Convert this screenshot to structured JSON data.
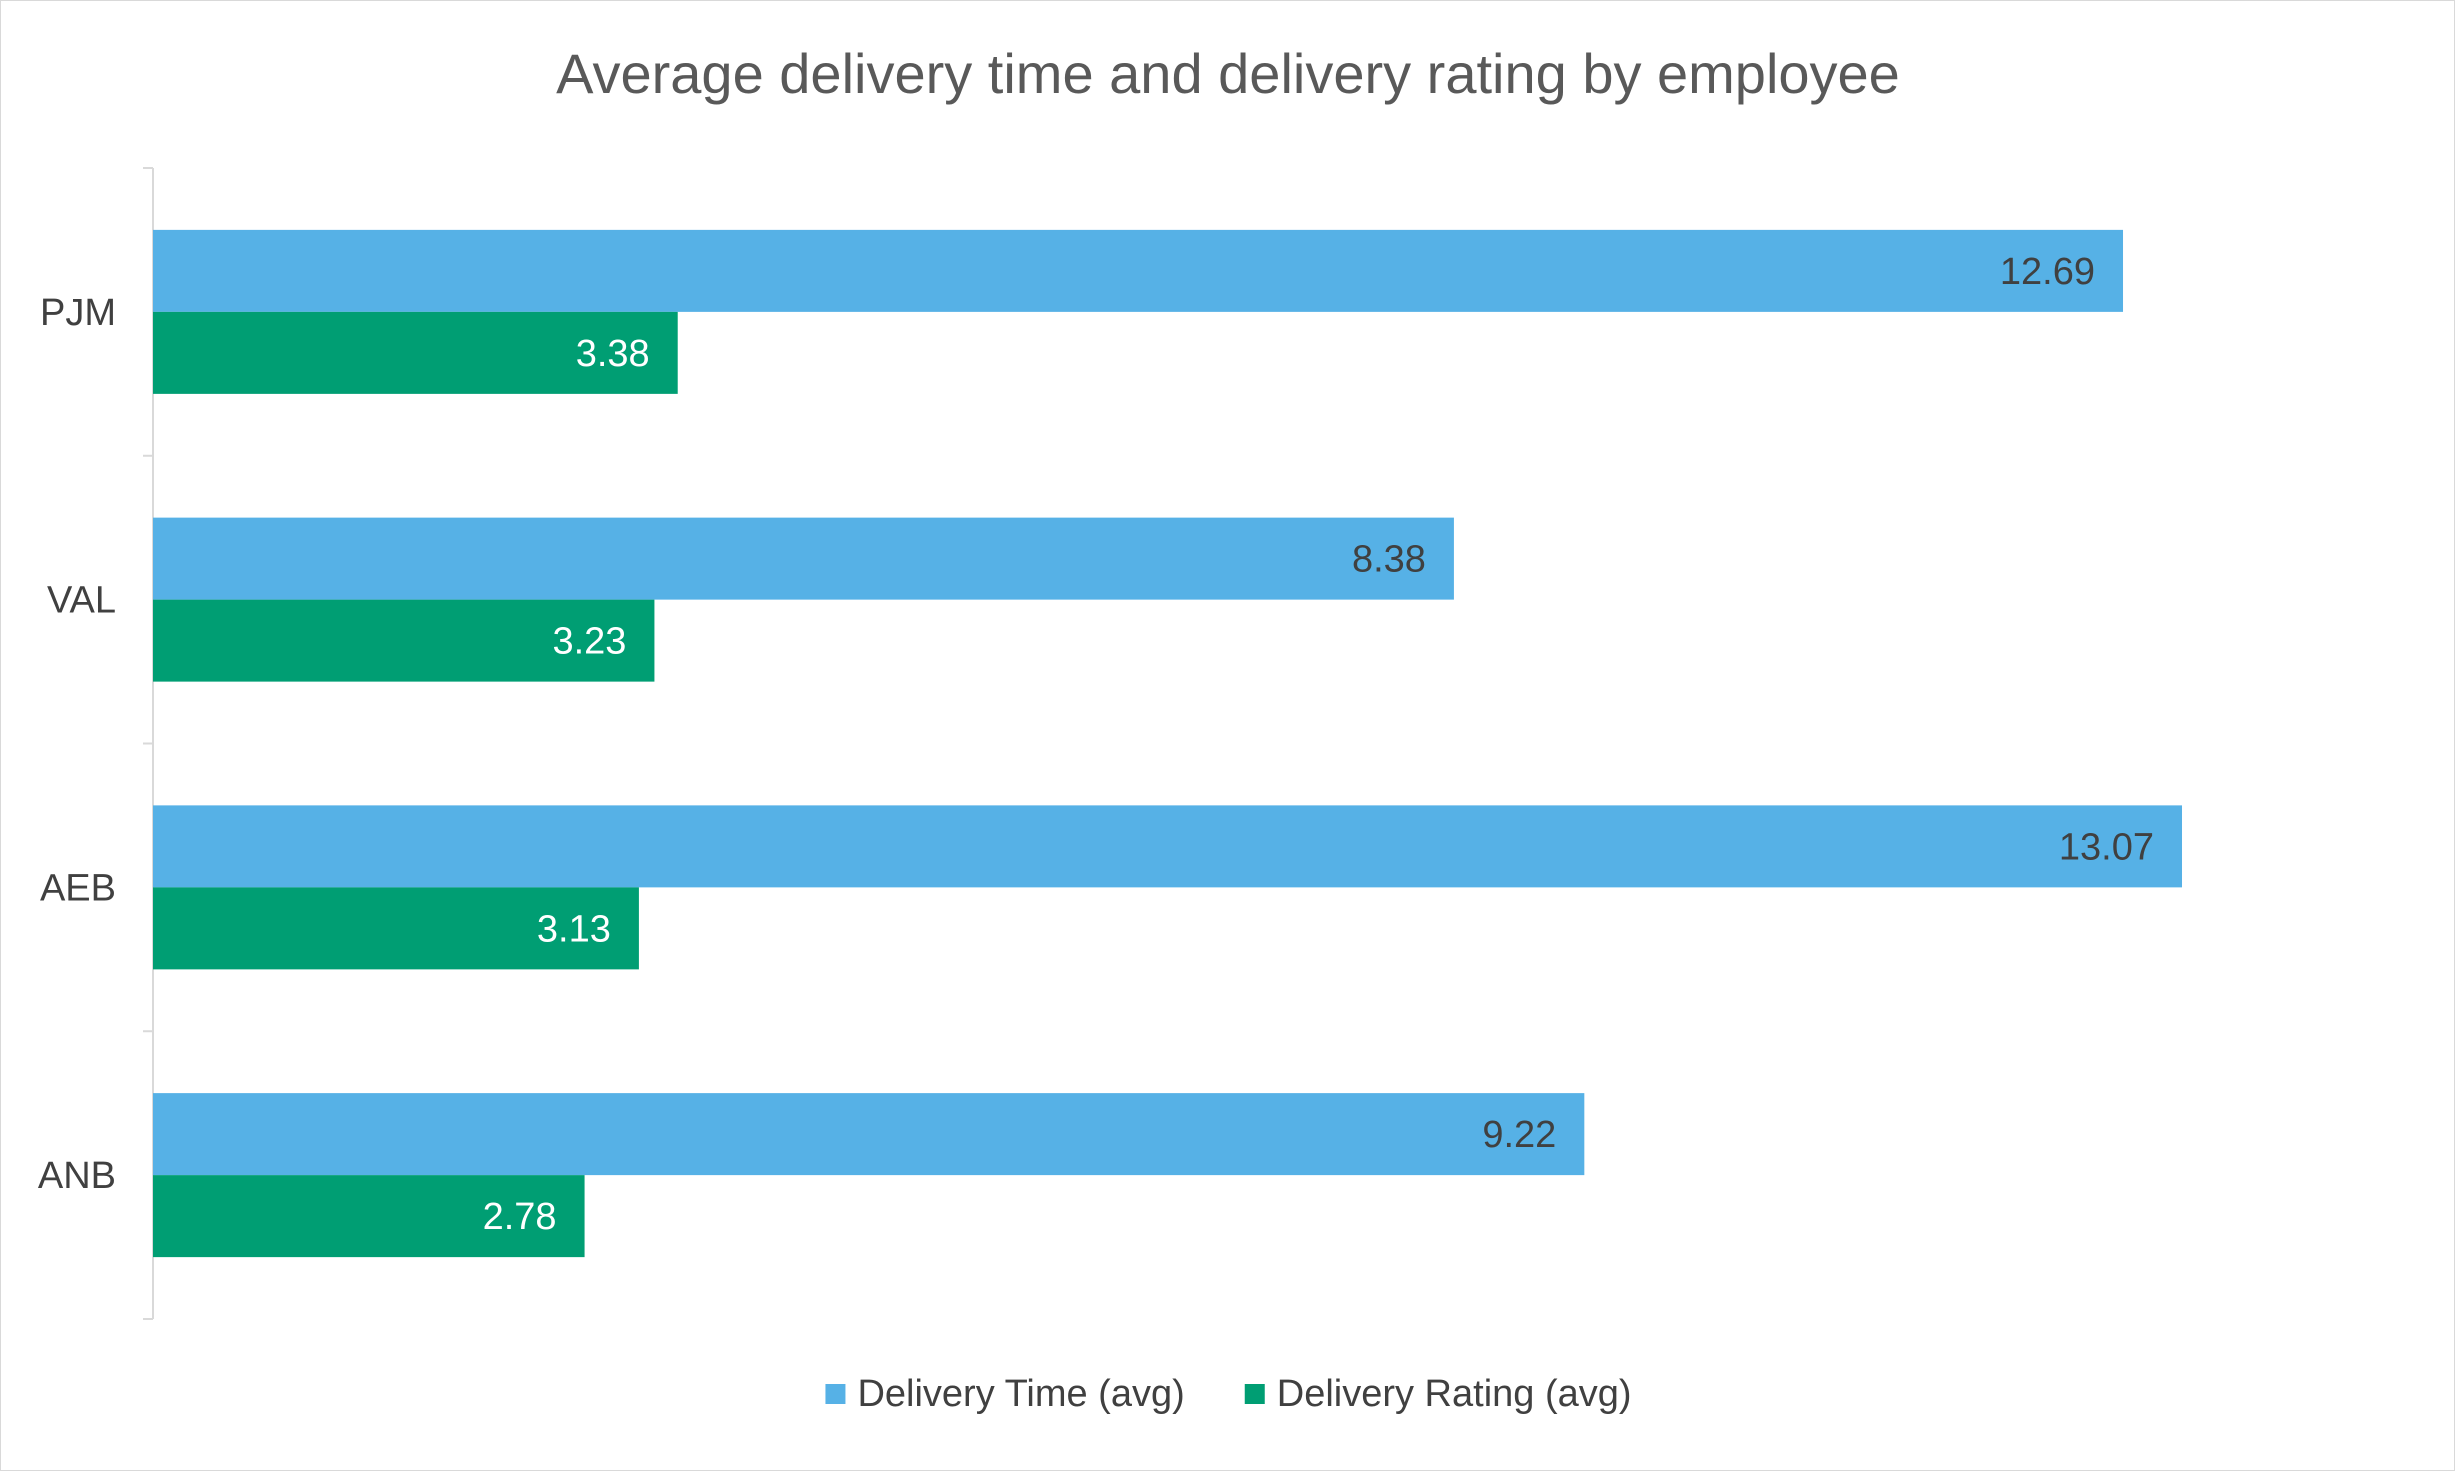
{
  "chart_data": {
    "type": "bar",
    "orientation": "horizontal",
    "title": "Average delivery time and delivery rating by employee",
    "categories": [
      "PJM",
      "VAL",
      "AEB",
      "ANB"
    ],
    "series": [
      {
        "name": "Delivery Time (avg)",
        "color": "#56b1e6",
        "label_color": "#404040",
        "values": [
          12.69,
          8.38,
          13.07,
          9.22
        ],
        "labels": [
          "12.69",
          "8.38",
          "13.07",
          "9.22"
        ]
      },
      {
        "name": "Delivery Rating (avg)",
        "color": "#009e73",
        "label_color": "#ffffff",
        "values": [
          3.38,
          3.23,
          3.13,
          2.78
        ],
        "labels": [
          "3.38",
          "3.23",
          "3.13",
          "2.78"
        ]
      }
    ],
    "xlim": [
      0,
      14.5
    ],
    "grid": false,
    "legend_position": "bottom",
    "xlabel": "",
    "ylabel": ""
  }
}
